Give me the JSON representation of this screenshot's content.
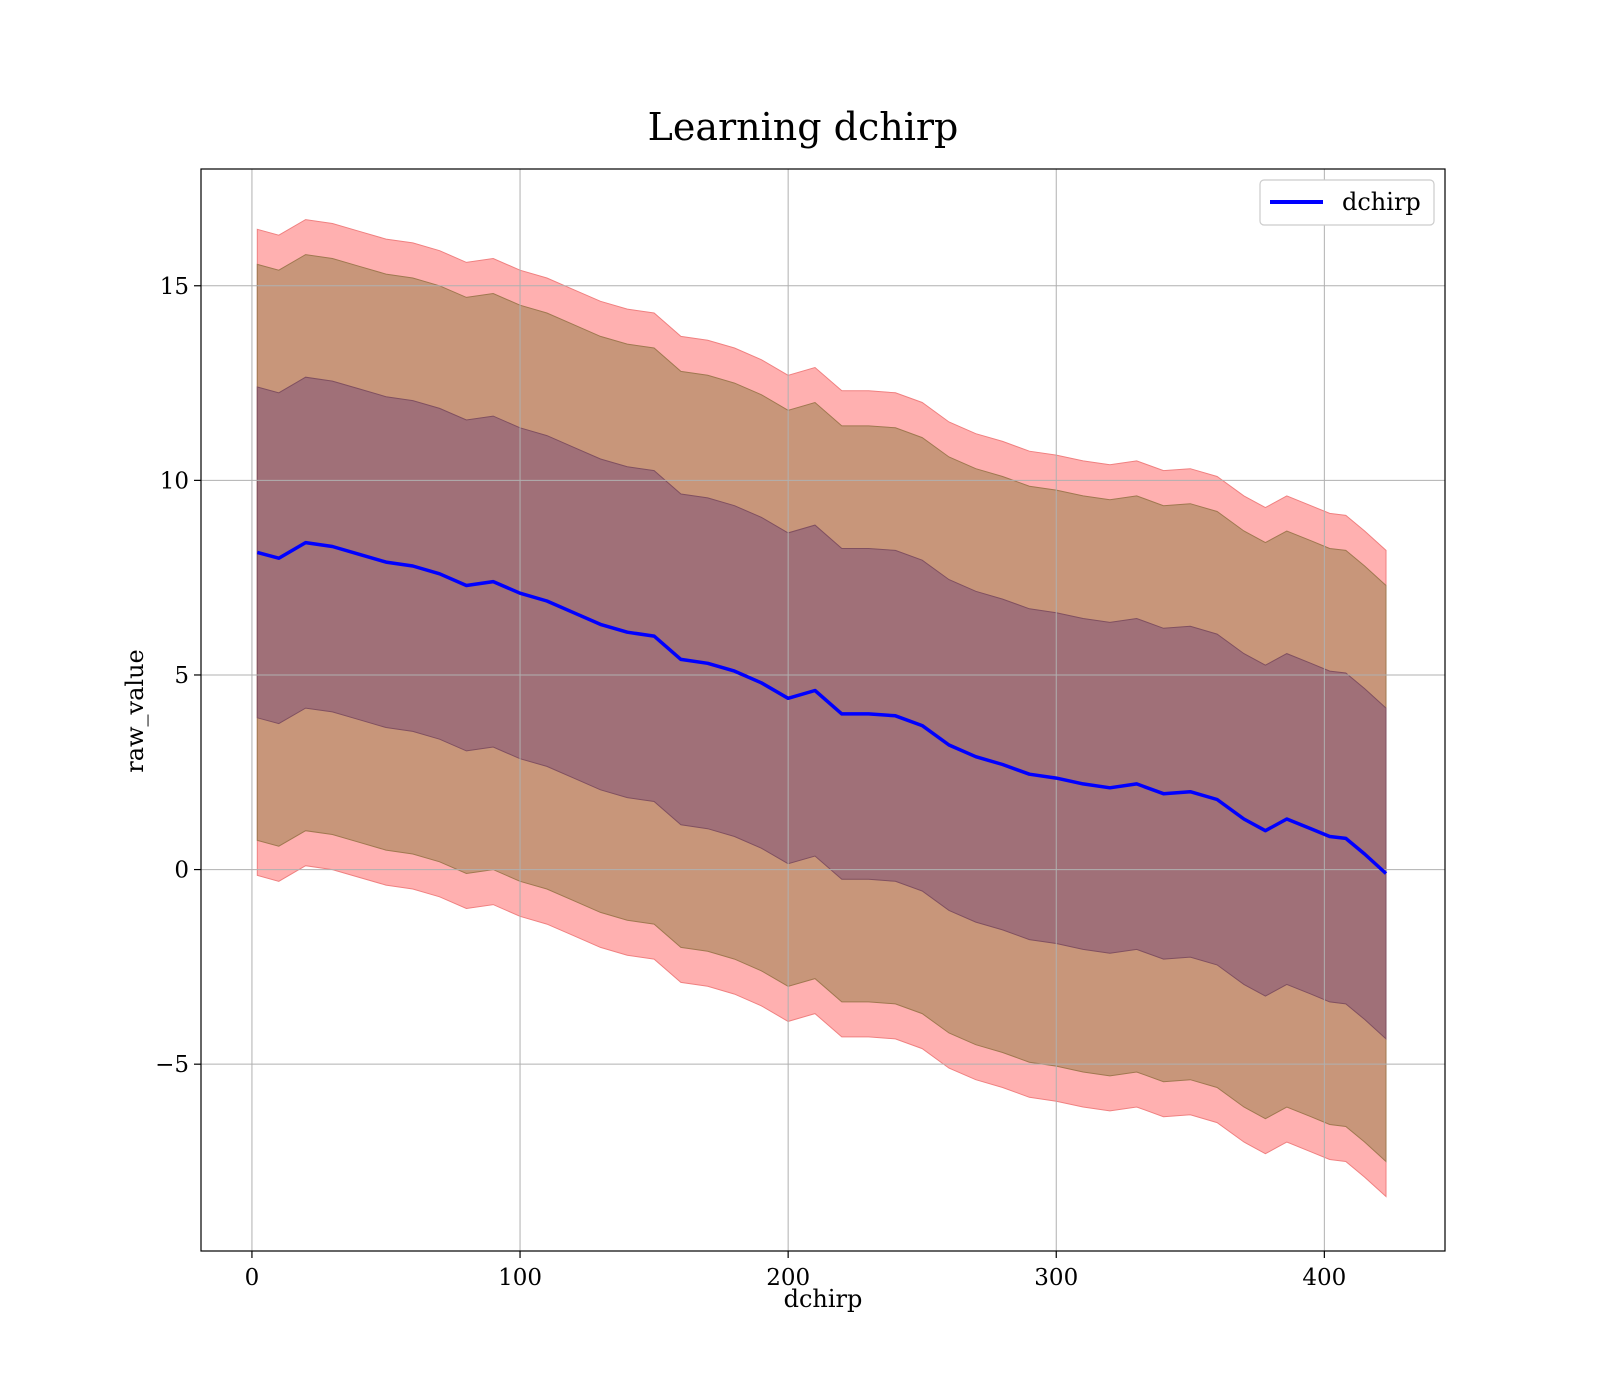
{
  "chart_data": {
    "type": "line",
    "title": "Learning dchirp",
    "xlabel": "dchirp",
    "ylabel": "raw_value",
    "xlim": [
      -19,
      445
    ],
    "ylim": [
      -9.8,
      18.0
    ],
    "xticks": [
      0,
      100,
      200,
      300,
      400
    ],
    "yticks": [
      -5,
      0,
      5,
      10,
      15
    ],
    "xtick_labels": [
      "0",
      "100",
      "200",
      "300",
      "400"
    ],
    "ytick_labels": [
      "−5",
      "0",
      "5",
      "10",
      "15"
    ],
    "grid": true,
    "legend": {
      "location": "top-right",
      "entries": [
        "dchirp"
      ]
    },
    "colors": {
      "line": "#0000ff",
      "outer_band": "#ffb0b0",
      "middle_band": "#c8967a",
      "inner_band": "#a07078"
    },
    "x": [
      2,
      10,
      20,
      30,
      40,
      50,
      60,
      70,
      80,
      90,
      100,
      110,
      120,
      130,
      140,
      150,
      160,
      170,
      180,
      190,
      200,
      210,
      220,
      230,
      240,
      250,
      260,
      270,
      280,
      290,
      300,
      310,
      320,
      330,
      340,
      350,
      360,
      370,
      378,
      386,
      395,
      402,
      408,
      415,
      423
    ],
    "series": [
      {
        "name": "dchirp",
        "values": [
          8.15,
          8.0,
          8.4,
          8.3,
          8.1,
          7.9,
          7.8,
          7.6,
          7.3,
          7.4,
          7.1,
          6.9,
          6.6,
          6.3,
          6.1,
          6.0,
          5.4,
          5.3,
          5.1,
          4.8,
          4.4,
          4.6,
          4.0,
          4.0,
          3.95,
          3.7,
          3.2,
          2.9,
          2.7,
          2.45,
          2.35,
          2.2,
          2.1,
          2.2,
          1.95,
          2.0,
          1.8,
          1.3,
          1.0,
          1.3,
          1.05,
          0.85,
          0.8,
          0.4,
          -0.1
        ],
        "outer_band": {
          "offset": 8.3
        },
        "middle_band": {
          "offset": 7.4
        },
        "inner_band": {
          "offset": 4.25
        }
      }
    ]
  }
}
